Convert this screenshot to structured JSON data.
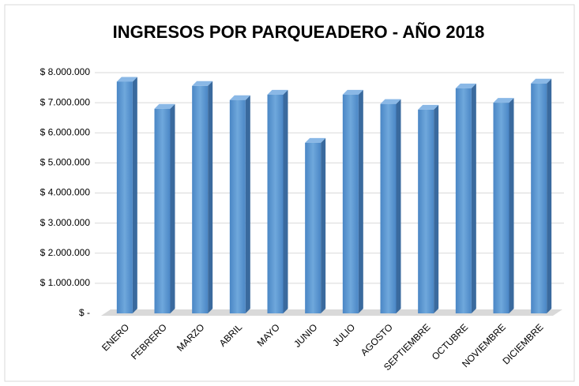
{
  "chart_data": {
    "type": "bar3d",
    "title": "INGRESOS POR PARQUEADERO - AÑO 2018",
    "categories": [
      "ENERO",
      "FEBRERO",
      "MARZO",
      "ABRIL",
      "MAYO",
      "JUNIO",
      "JULIO",
      "AGOSTO",
      "SEPTIEMBRE",
      "OCTUBRE",
      "NOVIEMBRE",
      "DICIEMBRE"
    ],
    "values": [
      7700000,
      6800000,
      7560000,
      7090000,
      7270000,
      5670000,
      7270000,
      6960000,
      6770000,
      7480000,
      7000000,
      7640000
    ],
    "color": "#5b9bd5",
    "ylim": [
      0,
      8000000
    ],
    "yticks": [
      {
        "value": 0,
        "label": "$ -"
      },
      {
        "value": 1000000,
        "label": "$ 1.000.000"
      },
      {
        "value": 2000000,
        "label": "$ 2.000.000"
      },
      {
        "value": 3000000,
        "label": "$ 3.000.000"
      },
      {
        "value": 4000000,
        "label": "$ 4.000.000"
      },
      {
        "value": 5000000,
        "label": "$ 5.000.000"
      },
      {
        "value": 6000000,
        "label": "$ 6.000.000"
      },
      {
        "value": 7000000,
        "label": "$ 7.000.000"
      },
      {
        "value": 8000000,
        "label": "$ 8.000.000"
      }
    ],
    "grid": true
  }
}
